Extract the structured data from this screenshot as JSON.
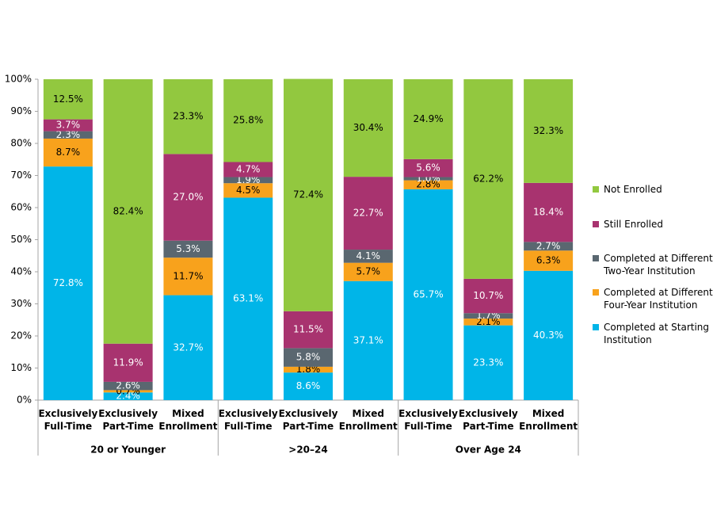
{
  "chart_data": {
    "type": "stacked_bar",
    "categories": [
      "Exclusively Full-Time",
      "Exclusively Part-Time",
      "Mixed Enrollment",
      "Exclusively Full-Time",
      "Exclusively Part-Time",
      "Mixed Enrollment",
      "Exclusively Full-Time",
      "Exclusively Part-Time",
      "Mixed Enrollment"
    ],
    "groups": [
      "20 or Younger",
      ">20–24",
      "Over Age 24"
    ],
    "series": [
      {
        "name": "Completed at Starting Institution",
        "color": "#00b5e8",
        "label_color": "#ffffff",
        "values": [
          72.8,
          2.4,
          32.7,
          63.1,
          8.6,
          37.1,
          65.7,
          23.3,
          40.3
        ],
        "value_labels": [
          "72.8%",
          "2.4%",
          "32.7%",
          "63.1%",
          "8.6%",
          "37.1%",
          "65.7%",
          "23.3%",
          "40.3%"
        ]
      },
      {
        "name": "Completed at Different Four-Year Institution",
        "color": "#f8a21c",
        "label_color": "#000000",
        "values": [
          8.7,
          0.7,
          11.7,
          4.5,
          1.8,
          5.7,
          2.8,
          2.1,
          6.3
        ],
        "value_labels": [
          "8.7%",
          "0.7%",
          "11.7%",
          "4.5%",
          "1.8%",
          "5.7%",
          "2.8%",
          "2.1%",
          "6.3%"
        ]
      },
      {
        "name": "Completed at Different Two-Year Institution",
        "color": "#5a6770",
        "label_color": "#ffffff",
        "values": [
          2.3,
          2.6,
          5.3,
          1.9,
          5.8,
          4.1,
          1.0,
          1.7,
          2.7
        ],
        "value_labels": [
          "2.3%",
          "2.6%",
          "5.3%",
          "1.9%",
          "5.8%",
          "4.1%",
          "1.0%",
          "1.7%",
          "2.7%"
        ]
      },
      {
        "name": "Still Enrolled",
        "color": "#a8336f",
        "label_color": "#ffffff",
        "values": [
          3.7,
          11.9,
          27.0,
          4.7,
          11.5,
          22.7,
          5.6,
          10.7,
          18.4
        ],
        "value_labels": [
          "3.7%",
          "11.9%",
          "27.0%",
          "4.7%",
          "11.5%",
          "22.7%",
          "5.6%",
          "10.7%",
          "18.4%"
        ]
      },
      {
        "name": "Not Enrolled",
        "color": "#92c83f",
        "label_color": "#000000",
        "values": [
          12.5,
          82.4,
          23.3,
          25.8,
          72.4,
          30.4,
          24.9,
          62.2,
          32.3
        ],
        "value_labels": [
          "12.5%",
          "82.4%",
          "23.3%",
          "25.8%",
          "72.4%",
          "30.4%",
          "24.9%",
          "62.2%",
          "32.3%"
        ]
      }
    ],
    "ylim": [
      0,
      100
    ],
    "yticks": [
      {
        "value": 0,
        "label": "0%"
      },
      {
        "value": 10,
        "label": "10%"
      },
      {
        "value": 20,
        "label": "20%"
      },
      {
        "value": 30,
        "label": "30%"
      },
      {
        "value": 40,
        "label": "40%"
      },
      {
        "value": 50,
        "label": "50%"
      },
      {
        "value": 60,
        "label": "60%"
      },
      {
        "value": 70,
        "label": "70%"
      },
      {
        "value": 80,
        "label": "80%"
      },
      {
        "value": 90,
        "label": "90%"
      },
      {
        "value": 100,
        "label": "100%"
      }
    ],
    "grid": false,
    "legend": "right"
  }
}
